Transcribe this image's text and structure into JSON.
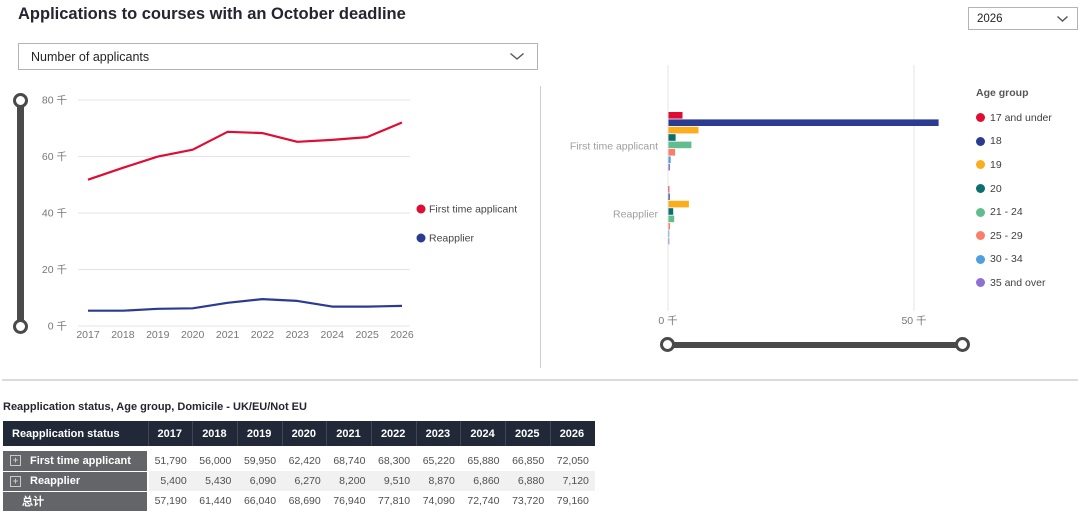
{
  "page": {
    "title": "Applications to courses with an October deadline"
  },
  "filters": {
    "year_dropdown": {
      "value": "2026",
      "icon": "chevron-down"
    },
    "metric_dropdown": {
      "value": "Number of applicants",
      "icon": "chevron-down"
    }
  },
  "chart_data": [
    {
      "type": "line",
      "title": "Number of applicants",
      "x": [
        "2017",
        "2018",
        "2019",
        "2020",
        "2021",
        "2022",
        "2023",
        "2024",
        "2025",
        "2026"
      ],
      "series": [
        {
          "name": "First time applicant",
          "color": "#df0c33",
          "values": [
            51790,
            56000,
            59950,
            62420,
            68740,
            68300,
            65220,
            65880,
            66850,
            72050
          ]
        },
        {
          "name": "Reapplier",
          "color": "#2b3b92",
          "values": [
            5400,
            5430,
            6090,
            6270,
            8200,
            9510,
            8870,
            6860,
            6880,
            7120
          ]
        }
      ],
      "ylim": [
        0,
        80000
      ],
      "ytick_labels": [
        "0 千",
        "20 千",
        "40 千",
        "60 千",
        "80 千"
      ],
      "grid": true,
      "legend_position": "right"
    },
    {
      "type": "bar",
      "orientation": "horizontal",
      "categories": [
        "First time applicant",
        "Reapplier"
      ],
      "legend_title": "Age group",
      "series": [
        {
          "name": "17 and under",
          "color": "#df0c33",
          "values": [
            2850,
            150
          ]
        },
        {
          "name": "18",
          "color": "#2b3b92",
          "values": [
            54900,
            250
          ]
        },
        {
          "name": "19",
          "color": "#fbad1b",
          "values": [
            6100,
            4150
          ]
        },
        {
          "name": "20",
          "color": "#0c6e6e",
          "values": [
            1450,
            950
          ]
        },
        {
          "name": "21 - 24",
          "color": "#62bd8e",
          "values": [
            4650,
            1150
          ]
        },
        {
          "name": "25 - 29",
          "color": "#fb7e6a",
          "values": [
            1350,
            300
          ]
        },
        {
          "name": "30 - 34",
          "color": "#4e9fe0",
          "values": [
            450,
            120
          ]
        },
        {
          "name": "35 and over",
          "color": "#8d6fd6",
          "values": [
            300,
            50
          ]
        }
      ],
      "xlim": [
        0,
        50000
      ],
      "xtick_labels": [
        "0 千",
        "50 千"
      ],
      "grid": true,
      "legend_position": "right"
    }
  ],
  "table": {
    "title": "Reapplication status, Age group, Domicile - UK/EU/Not EU",
    "header": [
      "Reapplication status",
      "2017",
      "2018",
      "2019",
      "2020",
      "2021",
      "2022",
      "2023",
      "2024",
      "2025",
      "2026"
    ],
    "rows": [
      {
        "label": "First time applicant",
        "expandable": true,
        "values": [
          "51,790",
          "56,000",
          "59,950",
          "62,420",
          "68,740",
          "68,300",
          "65,220",
          "65,880",
          "66,850",
          "72,050"
        ]
      },
      {
        "label": "Reapplier",
        "expandable": true,
        "values": [
          "5,400",
          "5,430",
          "6,090",
          "6,270",
          "8,200",
          "9,510",
          "8,870",
          "6,860",
          "6,880",
          "7,120"
        ]
      },
      {
        "label": "总计",
        "expandable": false,
        "values": [
          "57,190",
          "61,440",
          "66,040",
          "68,690",
          "76,940",
          "77,810",
          "74,090",
          "72,740",
          "73,720",
          "79,160"
        ]
      }
    ]
  },
  "icons": {
    "chevron_down": "v",
    "expand": "+"
  },
  "colors": {
    "accent_red": "#df0c33",
    "accent_navy": "#2b3b92",
    "table_header_bg": "#212938",
    "row_label_bg": "#646569",
    "row_alt_bg": "#f1f1f1",
    "grid_line": "#e4e4e4",
    "slider": "#4a4a4a"
  }
}
